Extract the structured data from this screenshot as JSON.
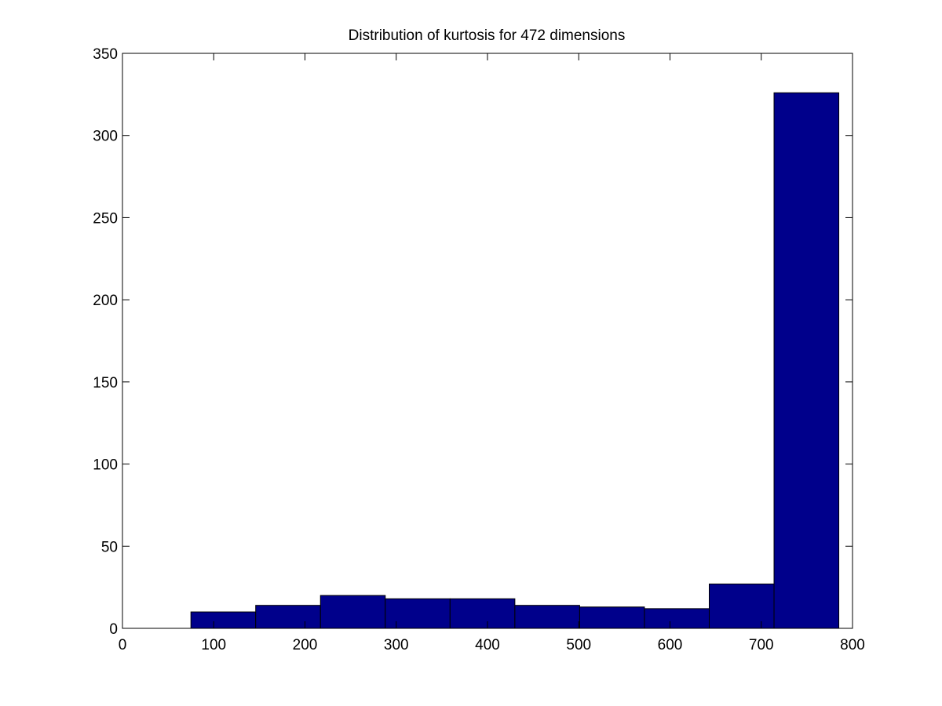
{
  "chart_data": {
    "type": "bar",
    "title": "Distribution of kurtosis for 472 dimensions",
    "xlabel": "",
    "ylabel": "",
    "xlim": [
      0,
      800
    ],
    "ylim": [
      0,
      350
    ],
    "x_ticks": [
      0,
      100,
      200,
      300,
      400,
      500,
      600,
      700,
      800
    ],
    "y_ticks": [
      0,
      50,
      100,
      150,
      200,
      250,
      300,
      350
    ],
    "bins": [
      {
        "x0": 75,
        "x1": 146,
        "count": 10
      },
      {
        "x0": 146,
        "x1": 217,
        "count": 14
      },
      {
        "x0": 217,
        "x1": 288,
        "count": 20
      },
      {
        "x0": 288,
        "x1": 359,
        "count": 18
      },
      {
        "x0": 359,
        "x1": 430,
        "count": 18
      },
      {
        "x0": 430,
        "x1": 501,
        "count": 14
      },
      {
        "x0": 501,
        "x1": 572,
        "count": 13
      },
      {
        "x0": 572,
        "x1": 643,
        "count": 12
      },
      {
        "x0": 643,
        "x1": 714,
        "count": 27
      },
      {
        "x0": 714,
        "x1": 785,
        "count": 326
      }
    ],
    "bar_color": "#00008b",
    "grid": false,
    "legend": false
  }
}
